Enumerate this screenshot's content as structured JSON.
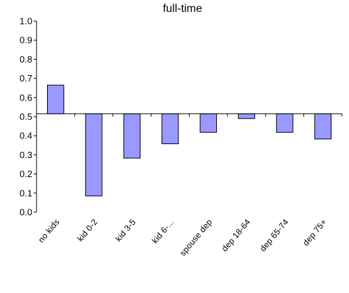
{
  "chart_data": {
    "type": "bar",
    "title": "full-time",
    "baseline": 0.515,
    "categories": [
      "no kids",
      "kid 0-2",
      "kid 3-5",
      "kid 6-...",
      "spouse dep",
      "dep 18-64",
      "dep 65-74",
      "dep 75+"
    ],
    "values": [
      0.665,
      0.085,
      0.283,
      0.358,
      0.418,
      0.49,
      0.418,
      0.383
    ],
    "ylim": [
      0,
      1.0
    ],
    "yticks": [
      "0.0",
      "0.1",
      "0.2",
      "0.3",
      "0.4",
      "0.5",
      "0.6",
      "0.7",
      "0.8",
      "0.9",
      "1.0"
    ],
    "grid": false,
    "legend": "none",
    "colors": {
      "bar_fill": "#9999ff",
      "bar_stroke": "#000000",
      "axis": "#000000"
    }
  }
}
